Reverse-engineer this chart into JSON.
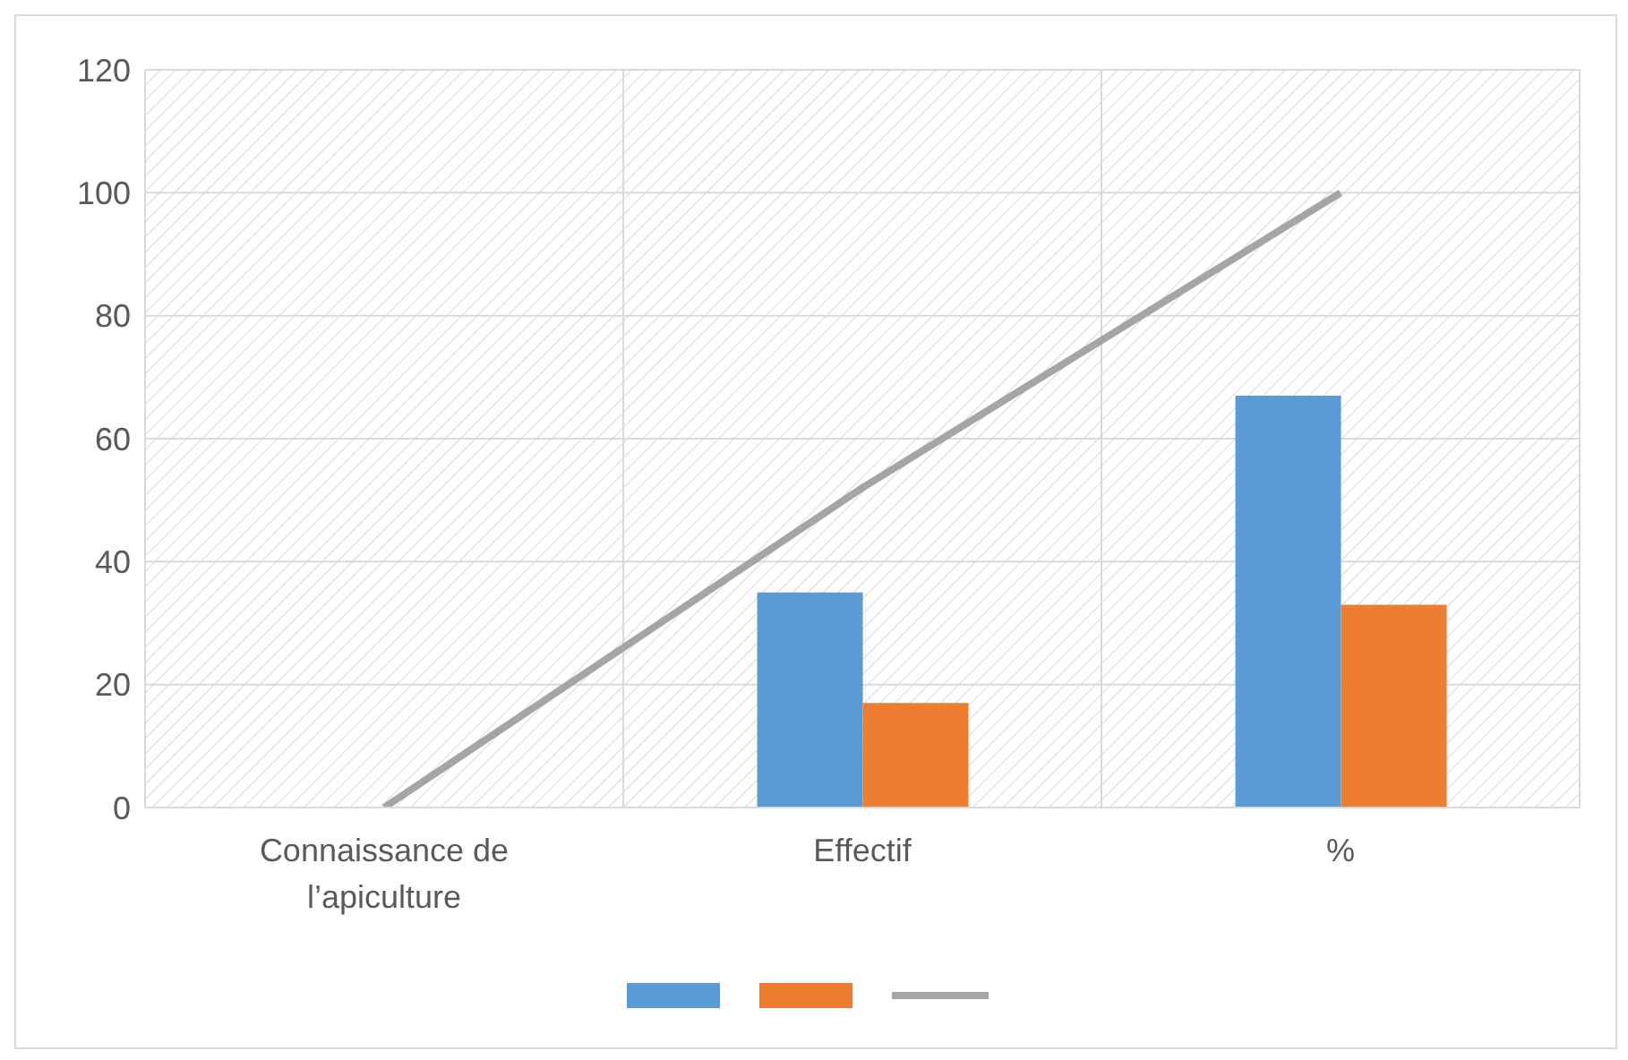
{
  "chart_data": {
    "type": "bar",
    "categories": [
      "Connaissance de l’apiculture",
      "Effectif",
      "%"
    ],
    "series": [
      {
        "color": "#5b9bd5",
        "values": [
          null,
          35,
          67
        ]
      },
      {
        "color": "#ed7d31",
        "values": [
          null,
          17,
          33
        ]
      },
      {
        "type": "line",
        "color": "#a5a5a5",
        "values": [
          0,
          52,
          100
        ]
      }
    ],
    "ylim": [
      0,
      120
    ],
    "yticks": [
      0,
      20,
      40,
      60,
      80,
      100,
      120
    ],
    "grid": true,
    "marker": "none"
  }
}
